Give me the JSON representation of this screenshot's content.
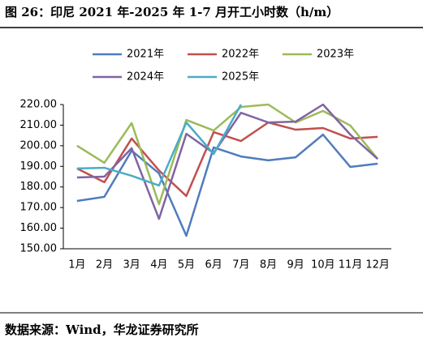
{
  "chart_data": {
    "type": "line",
    "title": "图 26：印尼 2021 年-2025 年 1-7 月开工小时数（h/m）",
    "source": "数据来源：Wind，华龙证券研究所",
    "categories": [
      "1月",
      "2月",
      "3月",
      "4月",
      "5月",
      "6月",
      "7月",
      "8月",
      "9月",
      "10月",
      "11月",
      "12月"
    ],
    "series": [
      {
        "name": "2021年",
        "color": "#4f7cbd",
        "values": [
          173.2,
          175.2,
          197.6,
          186.6,
          156.3,
          199.2,
          194.8,
          192.9,
          194.4,
          205.4,
          189.7,
          191.3
        ]
      },
      {
        "name": "2022年",
        "color": "#c0504d",
        "values": [
          189,
          182.3,
          203.5,
          188,
          175.6,
          206.6,
          202.3,
          211.3,
          207.8,
          208.6,
          203.5,
          204.3
        ]
      },
      {
        "name": "2023年",
        "color": "#9bbb59",
        "values": [
          200,
          191.7,
          211,
          171.6,
          212.5,
          207.4,
          218.8,
          220,
          211.3,
          216.9,
          209.8,
          193.6
        ]
      },
      {
        "name": "2024年",
        "color": "#8064a2",
        "values": [
          184.6,
          185,
          198.8,
          164.5,
          205.8,
          196.4,
          216,
          211.3,
          211.7,
          220,
          205.4,
          193.6
        ]
      },
      {
        "name": "2025年",
        "color": "#4bacc6",
        "values": [
          189,
          189.3,
          185.4,
          180.7,
          211.3,
          196,
          220,
          null,
          null,
          null,
          null,
          null
        ]
      }
    ],
    "ylim": [
      150,
      220
    ],
    "yticks": [
      {
        "value": 150,
        "label": "150.00"
      },
      {
        "value": 160,
        "label": "160.00"
      },
      {
        "value": 170,
        "label": "170.00"
      },
      {
        "value": 180,
        "label": "180.00"
      },
      {
        "value": 190,
        "label": "190.00"
      },
      {
        "value": 200,
        "label": "200.00"
      },
      {
        "value": 210,
        "label": "210.00"
      },
      {
        "value": 220,
        "label": "220.00"
      }
    ],
    "grid": false
  }
}
